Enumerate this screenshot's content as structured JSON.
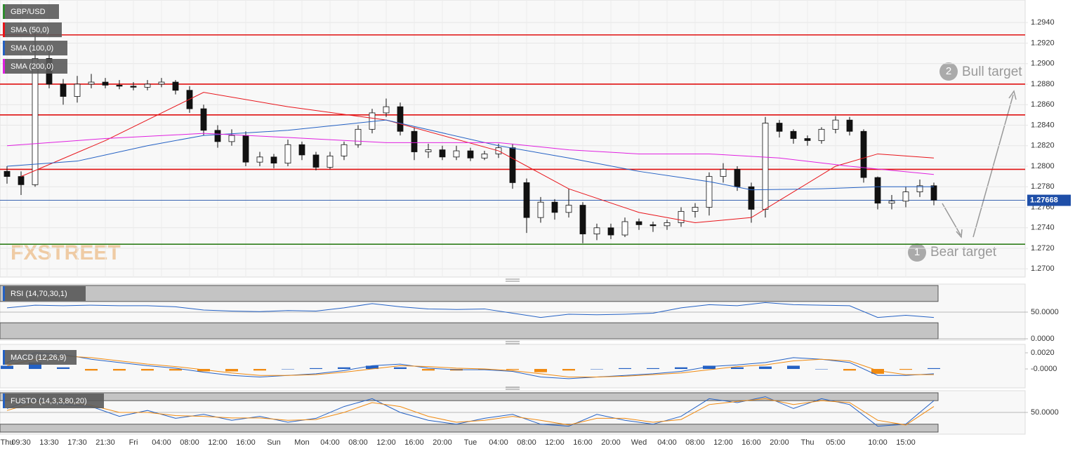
{
  "chart_data": [
    {
      "type": "candlestick",
      "categories": [
        "Thu",
        "09:30",
        null,
        "13:30",
        null,
        "17:30",
        null,
        "21:30",
        null,
        "Fri",
        null,
        "04:00",
        null,
        "08:00",
        null,
        "12:00",
        null,
        "16:00",
        null,
        "Sun",
        null,
        "Mon",
        null,
        "04:00",
        null,
        "08:00",
        null,
        "12:00",
        null,
        "16:00",
        null,
        "20:00",
        null,
        "Tue",
        null,
        "04:00",
        null,
        "08:00",
        null,
        "12:00",
        null,
        "16:00",
        null,
        "20:00",
        null,
        "Wed",
        null,
        "04:00",
        null,
        "08:00",
        null,
        "12:00",
        null,
        "16:00",
        null,
        "20:00",
        null,
        "Thu",
        null,
        "05:00",
        null,
        null,
        "10:00",
        null,
        "15:00",
        null,
        null
      ],
      "series": [
        {
          "name": "GBP/USD",
          "color": "#2e8b2e",
          "up_color": "#ffffff",
          "down_color": "#111111",
          "open": [
            1.2795,
            1.279,
            1.2782,
            1.2905,
            1.288,
            1.2868,
            1.288,
            1.2882,
            1.2879,
            1.2878,
            1.2877,
            1.288,
            1.2882,
            1.2874,
            1.2856,
            1.2835,
            1.2824,
            1.283,
            1.2804,
            1.2809,
            1.2803,
            1.2821,
            1.2811,
            1.2799,
            1.281,
            1.2821,
            1.2836,
            1.2852,
            1.2858,
            1.2834,
            1.2814,
            1.2816,
            1.2809,
            1.2815,
            1.2808,
            1.2812,
            1.2818,
            1.2784,
            1.275,
            1.2765,
            1.2755,
            1.2762,
            1.2734,
            1.274,
            1.2733,
            1.2746,
            1.2743,
            1.2742,
            1.2745,
            1.2756,
            1.276,
            1.279,
            1.2797,
            1.278,
            1.2758,
            1.2842,
            1.2834,
            1.2827,
            1.2825,
            1.2836,
            1.2845,
            1.2834,
            1.2789,
            1.2764,
            1.2766,
            1.2775,
            1.2781
          ],
          "high": [
            1.28,
            1.2795,
            1.293,
            1.2912,
            1.2885,
            1.2888,
            1.289,
            1.2886,
            1.2884,
            1.2882,
            1.2884,
            1.2886,
            1.2884,
            1.2878,
            1.286,
            1.284,
            1.2836,
            1.2834,
            1.2814,
            1.2812,
            1.2826,
            1.2824,
            1.2814,
            1.2814,
            1.2824,
            1.284,
            1.2856,
            1.2866,
            1.2862,
            1.2838,
            1.2822,
            1.282,
            1.282,
            1.2818,
            1.2815,
            1.2822,
            1.2822,
            1.2788,
            1.277,
            1.2768,
            1.2778,
            1.2765,
            1.2744,
            1.2744,
            1.275,
            1.2749,
            1.2746,
            1.2748,
            1.276,
            1.2764,
            1.2794,
            1.2803,
            1.28,
            1.2784,
            1.2848,
            1.2845,
            1.2836,
            1.283,
            1.2838,
            1.2849,
            1.2848,
            1.2836,
            1.279,
            1.2772,
            1.278,
            1.2787,
            1.2784
          ],
          "low": [
            1.2783,
            1.2772,
            1.278,
            1.2876,
            1.286,
            1.2862,
            1.2876,
            1.2876,
            1.2875,
            1.2874,
            1.2874,
            1.2877,
            1.287,
            1.2852,
            1.283,
            1.2818,
            1.282,
            1.28,
            1.28,
            1.2798,
            1.28,
            1.2806,
            1.2796,
            1.2797,
            1.2806,
            1.2818,
            1.2832,
            1.2848,
            1.283,
            1.2806,
            1.2808,
            1.2806,
            1.2806,
            1.2805,
            1.2806,
            1.2808,
            1.2778,
            1.2735,
            1.2745,
            1.2748,
            1.275,
            1.2725,
            1.2728,
            1.2729,
            1.2731,
            1.2738,
            1.2736,
            1.2738,
            1.2741,
            1.275,
            1.2752,
            1.2784,
            1.2776,
            1.2745,
            1.275,
            1.2828,
            1.2822,
            1.282,
            1.2822,
            1.2832,
            1.283,
            1.2784,
            1.2758,
            1.2758,
            1.276,
            1.277,
            1.2762
          ],
          "close": [
            1.279,
            1.2782,
            1.2905,
            1.288,
            1.2868,
            1.288,
            1.2882,
            1.2879,
            1.2878,
            1.2877,
            1.288,
            1.2882,
            1.2874,
            1.2856,
            1.2835,
            1.2824,
            1.283,
            1.2804,
            1.2809,
            1.2803,
            1.2821,
            1.2811,
            1.2799,
            1.281,
            1.2821,
            1.2836,
            1.2852,
            1.2858,
            1.2834,
            1.2814,
            1.2816,
            1.2809,
            1.2815,
            1.2808,
            1.2812,
            1.2818,
            1.2784,
            1.275,
            1.2765,
            1.2755,
            1.2762,
            1.2734,
            1.274,
            1.2733,
            1.2746,
            1.2743,
            1.2742,
            1.2745,
            1.2756,
            1.276,
            1.279,
            1.2797,
            1.278,
            1.2758,
            1.2842,
            1.2834,
            1.2827,
            1.2825,
            1.2836,
            1.2845,
            1.2834,
            1.2789,
            1.2764,
            1.2766,
            1.2775,
            1.2781,
            1.2767
          ]
        },
        {
          "name": "SMA (50,0)",
          "color": "#e8141a",
          "x": [
            1,
            7,
            14,
            20,
            27,
            35,
            40,
            45,
            49,
            53,
            56,
            59,
            62,
            64,
            66
          ],
          "values": [
            1.279,
            1.2825,
            1.2872,
            1.2858,
            1.2845,
            1.2815,
            1.2778,
            1.2755,
            1.2745,
            1.275,
            1.2775,
            1.28,
            1.2812,
            1.281,
            1.2808
          ]
        },
        {
          "name": "SMA (100,0)",
          "color": "#2461c4",
          "x": [
            0,
            5,
            10,
            14,
            20,
            27,
            35,
            40,
            45,
            50,
            53,
            58,
            62,
            66
          ],
          "values": [
            1.28,
            1.2805,
            1.282,
            1.283,
            1.2835,
            1.2845,
            1.282,
            1.2808,
            1.2795,
            1.2785,
            1.2777,
            1.2778,
            1.278,
            1.278
          ]
        },
        {
          "name": "SMA (200,0)",
          "color": "#e020e0",
          "x": [
            0,
            7,
            14,
            20,
            27,
            35,
            40,
            45,
            50,
            55,
            60,
            66
          ],
          "values": [
            1.282,
            1.2827,
            1.2832,
            1.2828,
            1.2823,
            1.2823,
            1.2816,
            1.2812,
            1.2812,
            1.2808,
            1.28,
            1.2792
          ]
        }
      ],
      "levels": [
        {
          "value": 1.2928,
          "color": "#e01010"
        },
        {
          "value": 1.288,
          "color": "#e01010"
        },
        {
          "value": 1.285,
          "color": "#e01010"
        },
        {
          "value": 1.2797,
          "color": "#e01010"
        },
        {
          "value": 1.2724,
          "color": "#2e7d1a"
        }
      ],
      "current": 1.27668,
      "current_color": "#1f4fa8",
      "ylim": [
        1.2692,
        1.2962
      ],
      "yticks": [
        {
          "value": 1.27,
          "label": "1.2700"
        },
        {
          "value": 1.272,
          "label": "1.2720"
        },
        {
          "value": 1.274,
          "label": "1.2740"
        },
        {
          "value": 1.276,
          "label": "1.2760"
        },
        {
          "value": 1.278,
          "label": "1.2780"
        },
        {
          "value": 1.28,
          "label": "1.2800"
        },
        {
          "value": 1.282,
          "label": "1.2820"
        },
        {
          "value": 1.284,
          "label": "1.2840"
        },
        {
          "value": 1.286,
          "label": "1.2860"
        },
        {
          "value": 1.288,
          "label": "1.2880"
        },
        {
          "value": 1.29,
          "label": "1.2900"
        },
        {
          "value": 1.292,
          "label": "1.2920"
        },
        {
          "value": 1.294,
          "label": "1.2940"
        }
      ],
      "grid": true,
      "annotations": [
        {
          "number": 2,
          "text": "Bull target"
        },
        {
          "number": 1,
          "text": "Bear target"
        }
      ],
      "watermark": "FXSTREET"
    },
    {
      "type": "line",
      "title": "RSI (14,70,30,1)",
      "overbought": 70,
      "oversold": 30,
      "x": [
        0,
        2,
        4,
        6,
        8,
        10,
        12,
        14,
        16,
        18,
        20,
        22,
        24,
        26,
        28,
        30,
        32,
        34,
        36,
        38,
        40,
        42,
        44,
        46,
        48,
        50,
        52,
        54,
        56,
        58,
        60,
        62,
        64,
        66
      ],
      "series": [
        {
          "color": "#2461c4",
          "values": [
            58,
            63,
            62,
            63,
            62,
            62,
            60,
            54,
            52,
            51,
            53,
            52,
            58,
            66,
            60,
            56,
            55,
            56,
            48,
            40,
            46,
            45,
            46,
            48,
            58,
            64,
            62,
            68,
            64,
            63,
            62,
            40,
            44,
            40
          ]
        }
      ],
      "ylim": [
        0,
        100
      ],
      "yticks": [
        {
          "value": 50,
          "label": "50.0000"
        },
        {
          "value": 0,
          "label": "0.0000"
        }
      ]
    },
    {
      "type": "macd",
      "title": "MACD (12,26,9)",
      "x": [
        0,
        2,
        4,
        6,
        8,
        10,
        12,
        14,
        16,
        18,
        20,
        22,
        24,
        26,
        28,
        30,
        32,
        34,
        36,
        38,
        40,
        42,
        44,
        46,
        48,
        50,
        52,
        54,
        56,
        58,
        60,
        62,
        64,
        66
      ],
      "series": [
        {
          "type": "bar",
          "color": "#2461c4",
          "negative_color": "#f08a10",
          "values": [
            0.0004,
            0.0008,
            0.0002,
            -0.0002,
            -0.0002,
            -0.0002,
            -0.0002,
            -0.0003,
            -0.0003,
            -0.0002,
            0,
            0.0001,
            0.0002,
            0.0004,
            0.0002,
            -0.0002,
            -0.0002,
            -0.0001,
            -0.0001,
            -0.0004,
            -0.0002,
            0,
            0.0001,
            0.0001,
            0.0002,
            0.0004,
            0.0002,
            0.0003,
            0.0004,
            0,
            -0.0002,
            -0.0006,
            -0.0001,
            0.0001
          ]
        },
        {
          "color": "#2461c4",
          "values": [
            0.0008,
            0.002,
            0.0018,
            0.0012,
            0.0008,
            0.0004,
            0.0001,
            -0.0004,
            -0.0008,
            -0.001,
            -0.0008,
            -0.0006,
            -0.0002,
            0.0004,
            0.0006,
            0.0001,
            -0.0001,
            -0.0001,
            -0.0003,
            -0.001,
            -0.0012,
            -0.001,
            -0.0008,
            -0.0006,
            -0.0003,
            0.0003,
            0.0005,
            0.0008,
            0.0014,
            0.0012,
            0.0008,
            -0.0008,
            -0.0008,
            -0.0006
          ]
        },
        {
          "color": "#f08a10",
          "values": [
            0.0004,
            0.0012,
            0.0016,
            0.0014,
            0.001,
            0.0006,
            0.0003,
            -0.0001,
            -0.0005,
            -0.0008,
            -0.0008,
            -0.0007,
            -0.0004,
            0,
            0.0004,
            0.0003,
            0.0001,
            0,
            -0.0002,
            -0.0006,
            -0.001,
            -0.001,
            -0.0009,
            -0.0007,
            -0.0005,
            -0.0001,
            0.0003,
            0.0005,
            0.001,
            0.0012,
            0.001,
            -0.0002,
            -0.0007,
            -0.0007
          ]
        }
      ],
      "ylim": [
        -0.00217,
        0.00287
      ],
      "yticks": [
        {
          "value": 0.002,
          "label": "0.0020"
        },
        {
          "value": 0,
          "label": "-0.0000"
        }
      ]
    },
    {
      "type": "line",
      "title": "FUSTO (14,3,3,80,20)",
      "overbought": 80,
      "oversold": 20,
      "x": [
        0,
        2,
        4,
        6,
        8,
        10,
        12,
        14,
        16,
        18,
        20,
        22,
        24,
        26,
        28,
        30,
        32,
        34,
        36,
        38,
        40,
        42,
        44,
        46,
        48,
        50,
        52,
        54,
        56,
        58,
        60,
        62,
        64,
        66
      ],
      "series": [
        {
          "color": "#2461c4",
          "values": [
            60,
            85,
            70,
            65,
            40,
            55,
            35,
            45,
            30,
            40,
            25,
            35,
            65,
            85,
            50,
            30,
            20,
            35,
            45,
            20,
            15,
            45,
            30,
            20,
            40,
            85,
            75,
            90,
            60,
            85,
            70,
            15,
            20,
            80
          ]
        },
        {
          "color": "#f08a10",
          "values": [
            55,
            75,
            78,
            68,
            50,
            50,
            42,
            40,
            36,
            36,
            30,
            32,
            50,
            75,
            65,
            40,
            25,
            30,
            40,
            30,
            18,
            35,
            35,
            25,
            32,
            70,
            78,
            85,
            70,
            80,
            75,
            30,
            18,
            65
          ]
        }
      ],
      "ylim": [
        0,
        100
      ],
      "yticks": [
        {
          "value": 50,
          "label": "50.0000"
        }
      ]
    }
  ]
}
